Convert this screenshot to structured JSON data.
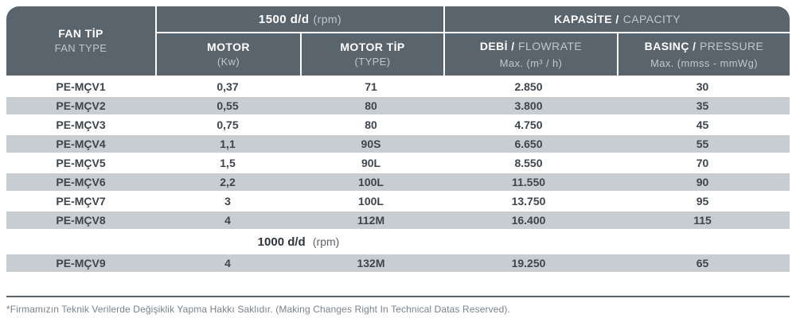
{
  "colors": {
    "header_bg": "#5a646d",
    "header_text": "#ffffff",
    "header_subtext": "#c0c7cc",
    "row_alt_bg": "#c8cdd2",
    "data_text": "#3e454c",
    "footer_text": "#7b8289",
    "rule": "#5a646d"
  },
  "table": {
    "header": {
      "fan_tip_bold": "FAN TİP",
      "fan_tip_sub": "FAN TYPE",
      "rpm1500_bold": "1500 d/d",
      "rpm1500_sub": "(rpm)",
      "kapasite_bold": "KAPASİTE /",
      "kapasite_sub": "CAPACITY",
      "motor_bold": "MOTOR",
      "motor_sub": "(Kw)",
      "motor_tip_bold": "MOTOR TİP",
      "motor_tip_sub": "(TYPE)",
      "debi_bold": "DEBİ /",
      "debi_sub": "FLOWRATE",
      "debi_unit": "Max. (m³ / h)",
      "basinc_bold": "BASINÇ /",
      "basinc_sub": "PRESSURE",
      "basinc_unit": "Max. (mmss - mmWg)"
    },
    "rows": [
      {
        "fan_type": "PE-MÇV1",
        "motor_kw": "0,37",
        "motor_type": "71",
        "flowrate": "2.850",
        "pressure": "30"
      },
      {
        "fan_type": "PE-MÇV2",
        "motor_kw": "0,55",
        "motor_type": "80",
        "flowrate": "3.800",
        "pressure": "35"
      },
      {
        "fan_type": "PE-MÇV3",
        "motor_kw": "0,75",
        "motor_type": "80",
        "flowrate": "4.750",
        "pressure": "45"
      },
      {
        "fan_type": "PE-MÇV4",
        "motor_kw": "1,1",
        "motor_type": "90S",
        "flowrate": "6.650",
        "pressure": "55"
      },
      {
        "fan_type": "PE-MÇV5",
        "motor_kw": "1,5",
        "motor_type": "90L",
        "flowrate": "8.550",
        "pressure": "70"
      },
      {
        "fan_type": "PE-MÇV6",
        "motor_kw": "2,2",
        "motor_type": "100L",
        "flowrate": "11.550",
        "pressure": "90"
      },
      {
        "fan_type": "PE-MÇV7",
        "motor_kw": "3",
        "motor_type": "100L",
        "flowrate": "13.750",
        "pressure": "95"
      },
      {
        "fan_type": "PE-MÇV8",
        "motor_kw": "4",
        "motor_type": "112M",
        "flowrate": "16.400",
        "pressure": "115"
      },
      {
        "fan_type": "PE-MÇV9",
        "motor_kw": "4",
        "motor_type": "132M",
        "flowrate": "19.250",
        "pressure": "65"
      }
    ],
    "separator": {
      "bold": "1000 d/d",
      "sub": "(rpm)"
    }
  },
  "footer": {
    "note": "*Firmamızın Teknik Verilerde Değişiklik Yapma Hakkı Saklıdır. (Making Changes Right In Technical Datas Reserved)."
  }
}
